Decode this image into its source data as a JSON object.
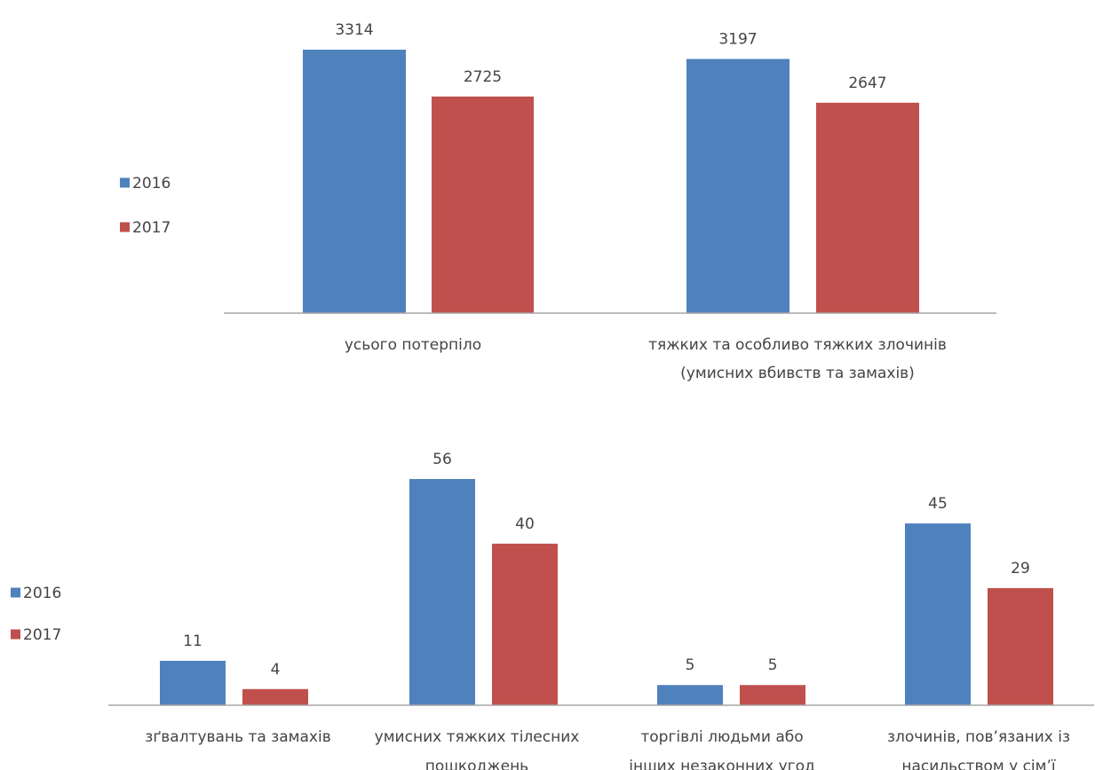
{
  "colors": {
    "2016": "#4F81BD",
    "2017": "#C0504D",
    "axis": "#A6A6A6",
    "text": "#444444"
  },
  "chart_data": [
    {
      "type": "bar",
      "categories": [
        [
          "усього потерпіло"
        ],
        [
          "тяжких та особливо тяжких злочинів",
          "(умисних  вбивств та замахів)"
        ]
      ],
      "series": [
        {
          "name": "2016",
          "values": [
            3314,
            3197
          ]
        },
        {
          "name": "2017",
          "values": [
            2725,
            2647
          ]
        }
      ],
      "legend": "left",
      "grid": false
    },
    {
      "type": "bar",
      "categories": [
        [
          "зґвалтувань та замахів"
        ],
        [
          "умисних  тяжких тілесних",
          "пошкоджень"
        ],
        [
          "торгівлі людьми або",
          "інших незаконних угод"
        ],
        [
          "злочинів, пов’язаних із",
          "насильством у сім’ї"
        ]
      ],
      "series": [
        {
          "name": "2016",
          "values": [
            11,
            56,
            5,
            45
          ]
        },
        {
          "name": "2017",
          "values": [
            4,
            40,
            5,
            29
          ]
        }
      ],
      "legend": "left",
      "grid": false
    }
  ]
}
